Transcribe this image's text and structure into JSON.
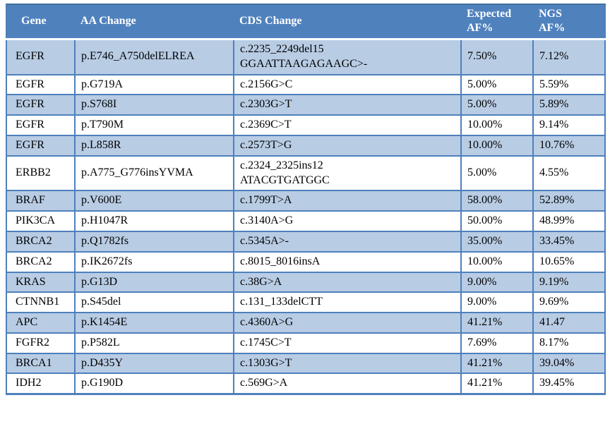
{
  "colors": {
    "header_background": "#4F81BD",
    "header_text": "#FFFFFF",
    "alt_row_background": "#B8CCE4",
    "row_background": "#FFFFFF",
    "border": "#4E80BC",
    "body_text": "#000000"
  },
  "table": {
    "columns": [
      "Gene",
      "AA Change",
      "CDS Change",
      "Expected\nAF%",
      "NGS\nAF%"
    ],
    "rows": [
      {
        "gene": "EGFR",
        "aa": "p.E746_A750delELREA",
        "cds": "c.2235_2249del15\nGGAATTAAGAGAAGC>-",
        "expected": "7.50%",
        "ngs": "7.12%"
      },
      {
        "gene": "EGFR",
        "aa": "p.G719A",
        "cds": "c.2156G>C",
        "expected": "5.00%",
        "ngs": "5.59%"
      },
      {
        "gene": "EGFR",
        "aa": "p.S768I",
        "cds": "c.2303G>T",
        "expected": "5.00%",
        "ngs": "5.89%"
      },
      {
        "gene": "EGFR",
        "aa": "p.T790M",
        "cds": "c.2369C>T",
        "expected": "10.00%",
        "ngs": "9.14%"
      },
      {
        "gene": "EGFR",
        "aa": "p.L858R",
        "cds": "c.2573T>G",
        "expected": "10.00%",
        "ngs": "10.76%"
      },
      {
        "gene": "ERBB2",
        "aa": "p.A775_G776insYVMA",
        "cds": "c.2324_2325ins12\nATACGTGATGGC",
        "expected": "5.00%",
        "ngs": "4.55%"
      },
      {
        "gene": "BRAF",
        "aa": "p.V600E",
        "cds": "c.1799T>A",
        "expected": "58.00%",
        "ngs": "52.89%"
      },
      {
        "gene": "PIK3CA",
        "aa": "p.H1047R",
        "cds": "c.3140A>G",
        "expected": "50.00%",
        "ngs": "48.99%"
      },
      {
        "gene": "BRCA2",
        "aa": "p.Q1782fs",
        "cds": "c.5345A>-",
        "expected": "35.00%",
        "ngs": "33.45%"
      },
      {
        "gene": "BRCA2",
        "aa": "p.IK2672fs",
        "cds": "c.8015_8016insA",
        "expected": "10.00%",
        "ngs": "10.65%"
      },
      {
        "gene": "KRAS",
        "aa": "p.G13D",
        "cds": "c.38G>A",
        "expected": "9.00%",
        "ngs": "9.19%"
      },
      {
        "gene": "CTNNB1",
        "aa": "p.S45del",
        "cds": "c.131_133delCTT",
        "expected": "9.00%",
        "ngs": "9.69%"
      },
      {
        "gene": "APC",
        "aa": "p.K1454E",
        "cds": "c.4360A>G",
        "expected": "41.21%",
        "ngs": "41.47"
      },
      {
        "gene": "FGFR2",
        "aa": "p.P582L",
        "cds": "c.1745C>T",
        "expected": "7.69%",
        "ngs": "8.17%"
      },
      {
        "gene": "BRCA1",
        "aa": "p.D435Y",
        "cds": "c.1303G>T",
        "expected": "41.21%",
        "ngs": "39.04%"
      },
      {
        "gene": "IDH2",
        "aa": "p.G190D",
        "cds": "c.569G>A",
        "expected": "41.21%",
        "ngs": "39.45%"
      }
    ]
  }
}
